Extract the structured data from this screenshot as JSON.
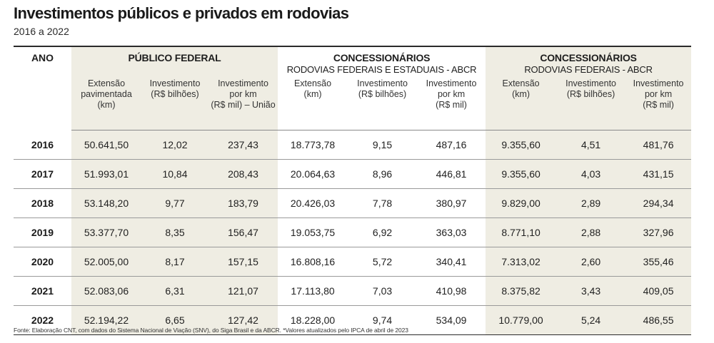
{
  "title": "Investimentos públicos e privados em rodovias",
  "subtitle": "2016 a 2022",
  "table": {
    "year_header": "ANO",
    "groups": [
      {
        "title": "PÚBLICO FEDERAL",
        "subtitle": ""
      },
      {
        "title": "CONCESSIONÁRIOS",
        "subtitle": "RODOVIAS FEDERAIS E ESTADUAIS - ABCR"
      },
      {
        "title": "CONCESSIONÁRIOS",
        "subtitle": "RODOVIAS FEDERAIS - ABCR"
      }
    ],
    "columns": [
      "Extensão\npavimentada\n(km)",
      "Investimento\n(R$ bilhões)",
      "Investimento\npor km\n(R$ mil) – União",
      "Extensão\n(km)",
      "Investimento\n(R$ bilhões)",
      "Investimento\npor km\n(R$ mil)",
      "Extensão\n(km)",
      "Investimento\n(R$ bilhões)",
      "Investimento\npor km\n(R$ mil)"
    ],
    "rows": [
      {
        "year": "2016",
        "values": [
          "50.641,50",
          "12,02",
          "237,43",
          "18.773,78",
          "9,15",
          "487,16",
          "9.355,60",
          "4,51",
          "481,76"
        ]
      },
      {
        "year": "2017",
        "values": [
          "51.993,01",
          "10,84",
          "208,43",
          "20.064,63",
          "8,96",
          "446,81",
          "9.355,60",
          "4,03",
          "431,15"
        ]
      },
      {
        "year": "2018",
        "values": [
          "53.148,20",
          "9,77",
          "183,79",
          "20.426,03",
          "7,78",
          "380,97",
          "9.829,00",
          "2,89",
          "294,34"
        ]
      },
      {
        "year": "2019",
        "values": [
          "53.377,70",
          "8,35",
          "156,47",
          "19.053,75",
          "6,92",
          "363,03",
          "8.771,10",
          "2,88",
          "327,96"
        ]
      },
      {
        "year": "2020",
        "values": [
          "52.005,00",
          "8,17",
          "157,15",
          "16.808,16",
          "5,72",
          "340,41",
          "7.313,02",
          "2,60",
          "355,46"
        ]
      },
      {
        "year": "2021",
        "values": [
          "52.083,06",
          "6,31",
          "121,07",
          "17.113,80",
          "7,03",
          "410,98",
          "8.375,82",
          "3,43",
          "409,05"
        ]
      },
      {
        "year": "2022",
        "values": [
          "52.194,22",
          "6,65",
          "127,42",
          "18.228,00",
          "9,74",
          "534,09",
          "10.779,00",
          "5,24",
          "486,55"
        ]
      }
    ]
  },
  "source": "Fonte: Elaboração CNT, com dados do Sistema Nacional de Viação (SNV), do Siga Brasil e da ABCR. *Valores atualizados pelo IPCA de abril de 2023",
  "colors": {
    "shade": "#efede3",
    "rule": "#2a2a2a"
  }
}
